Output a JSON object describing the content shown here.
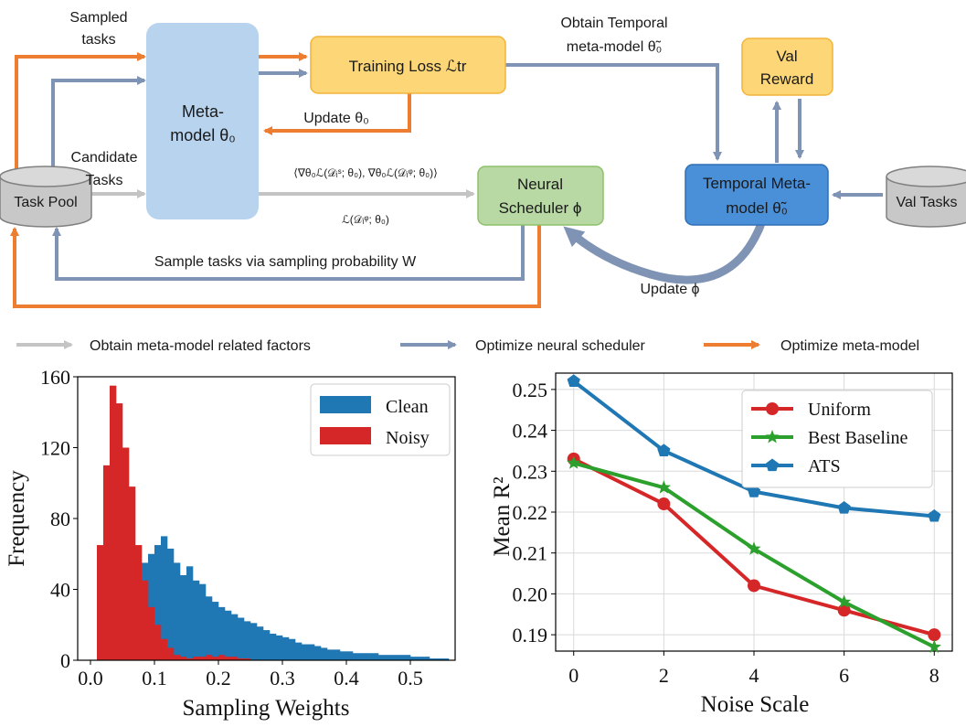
{
  "diagram": {
    "task_pool": "Task Pool",
    "val_tasks": "Val Tasks",
    "meta_model": [
      "Meta-",
      "model θ₀"
    ],
    "training_loss": "Training Loss ℒtr",
    "val_reward": [
      "Val",
      "Reward"
    ],
    "temporal_meta_model": [
      "Temporal Meta-",
      "model θ̃₀"
    ],
    "neural_scheduler": [
      "Neural",
      "Scheduler ϕ"
    ],
    "sampled_tasks": [
      "Sampled",
      "tasks"
    ],
    "candidate_tasks": [
      "Candidate",
      "Tasks"
    ],
    "obtain_temporal": [
      "Obtain Temporal",
      "meta-model θ̃₀"
    ],
    "update_theta": "Update θ₀",
    "gradient_factors": "⟨∇θ₀ℒ(𝒟ᵢˢ; θ₀), ∇θ₀ℒ(𝒟ᵢᵠ; θ₀)⟩",
    "loss_factor": "ℒ(𝒟ᵢᵠ; θ₀)",
    "sample_via_w": "Sample tasks via sampling probability W",
    "update_phi": "Update ϕ",
    "legend": [
      "Obtain meta-model related factors",
      "Optimize neural scheduler",
      "Optimize meta-model"
    ],
    "colors": {
      "gray_arrow": "#c4c4c4",
      "blue_arrow": "#7f93b4",
      "orange_arrow": "#ed7d31",
      "meta_model_fill": "#b7d3ee",
      "training_loss_fill": "#fdd777",
      "neural_scheduler_fill": "#b9d9a4",
      "temporal_fill": "#4a90d9"
    }
  },
  "chart_data": [
    {
      "type": "histogram",
      "xlabel": "Sampling Weights",
      "ylabel": "Frequency",
      "xlim": [
        -0.02,
        0.57
      ],
      "ylim": [
        0,
        160
      ],
      "xticks": [
        "0.0",
        "0.1",
        "0.2",
        "0.3",
        "0.4",
        "0.5"
      ],
      "yticks": [
        "0",
        "40",
        "80",
        "120",
        "160"
      ],
      "legend_position": "top-right",
      "bin_width": 0.01,
      "series": [
        {
          "name": "Clean",
          "color": "#1f77b4",
          "bin_start": 0.03,
          "counts": [
            2,
            20,
            40,
            55,
            53,
            55,
            60,
            65,
            70,
            63,
            55,
            48,
            53,
            45,
            43,
            36,
            33,
            30,
            28,
            26,
            24,
            22,
            21,
            19,
            17,
            15,
            14,
            13,
            12,
            10,
            9,
            9,
            8,
            7,
            6,
            6,
            5,
            5,
            4,
            4,
            4,
            4,
            3,
            3,
            3,
            3,
            3,
            2,
            2,
            2,
            1,
            1,
            1
          ]
        },
        {
          "name": "Noisy",
          "color": "#d62728",
          "bin_start": 0.01,
          "counts": [
            65,
            110,
            155,
            145,
            120,
            98,
            65,
            45,
            30,
            20,
            12,
            7,
            3,
            2,
            1,
            2,
            2,
            3,
            2,
            3,
            2,
            2,
            1,
            1
          ]
        }
      ]
    },
    {
      "type": "line",
      "xlabel": "Noise Scale",
      "ylabel": "Mean R²",
      "x": [
        0,
        2,
        4,
        6,
        8
      ],
      "xlim": [
        -0.4,
        8.4
      ],
      "ylim": [
        0.186,
        0.254
      ],
      "xticks": [
        "0",
        "2",
        "4",
        "6",
        "8"
      ],
      "yticks": [
        "0.19",
        "0.20",
        "0.21",
        "0.22",
        "0.23",
        "0.24",
        "0.25"
      ],
      "grid": true,
      "legend_position": "top-right",
      "series": [
        {
          "name": "Uniform",
          "color": "#d62728",
          "marker": "circle",
          "values": [
            0.233,
            0.222,
            0.202,
            0.196,
            0.19
          ]
        },
        {
          "name": "Best Baseline",
          "color": "#2ca02c",
          "marker": "star",
          "values": [
            0.232,
            0.226,
            0.211,
            0.198,
            0.187
          ]
        },
        {
          "name": "ATS",
          "color": "#1f77b4",
          "marker": "pentagon",
          "values": [
            0.252,
            0.235,
            0.225,
            0.221,
            0.219
          ]
        }
      ]
    }
  ]
}
